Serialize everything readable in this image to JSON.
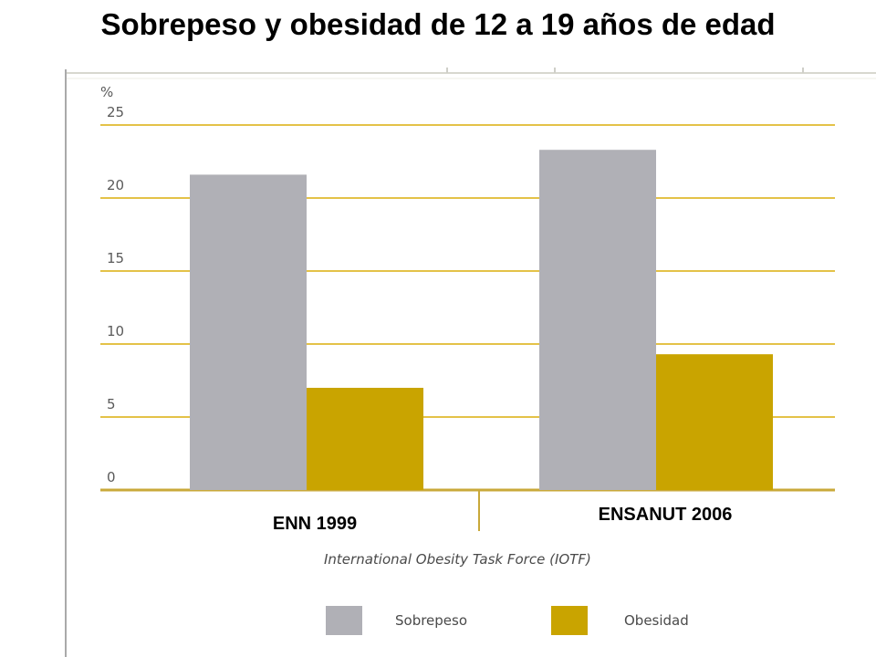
{
  "title": "Sobrepeso y obesidad de 12 a 19 años de edad",
  "source_note": "International Obesity Task Force (IOTF)",
  "colors": {
    "grid": "#e4c248",
    "axis": "#c9a93a",
    "sobrepeso": "#b0b0b6",
    "obesidad": "#c9a400"
  },
  "chart_data": {
    "type": "bar",
    "title": "Sobrepeso y obesidad de 12 a 19 años de edad",
    "ylabel": "%",
    "xlabel": "",
    "categories": [
      "ENN 1999",
      "ENSANUT 2006"
    ],
    "series": [
      {
        "name": "Sobrepeso",
        "values": [
          21.6,
          23.3
        ]
      },
      {
        "name": "Obesidad",
        "values": [
          7.0,
          9.3
        ]
      }
    ],
    "ylim": [
      0,
      25
    ],
    "yticks": [
      0,
      5,
      10,
      15,
      20,
      25
    ],
    "grid": true,
    "legend": "bottom"
  }
}
